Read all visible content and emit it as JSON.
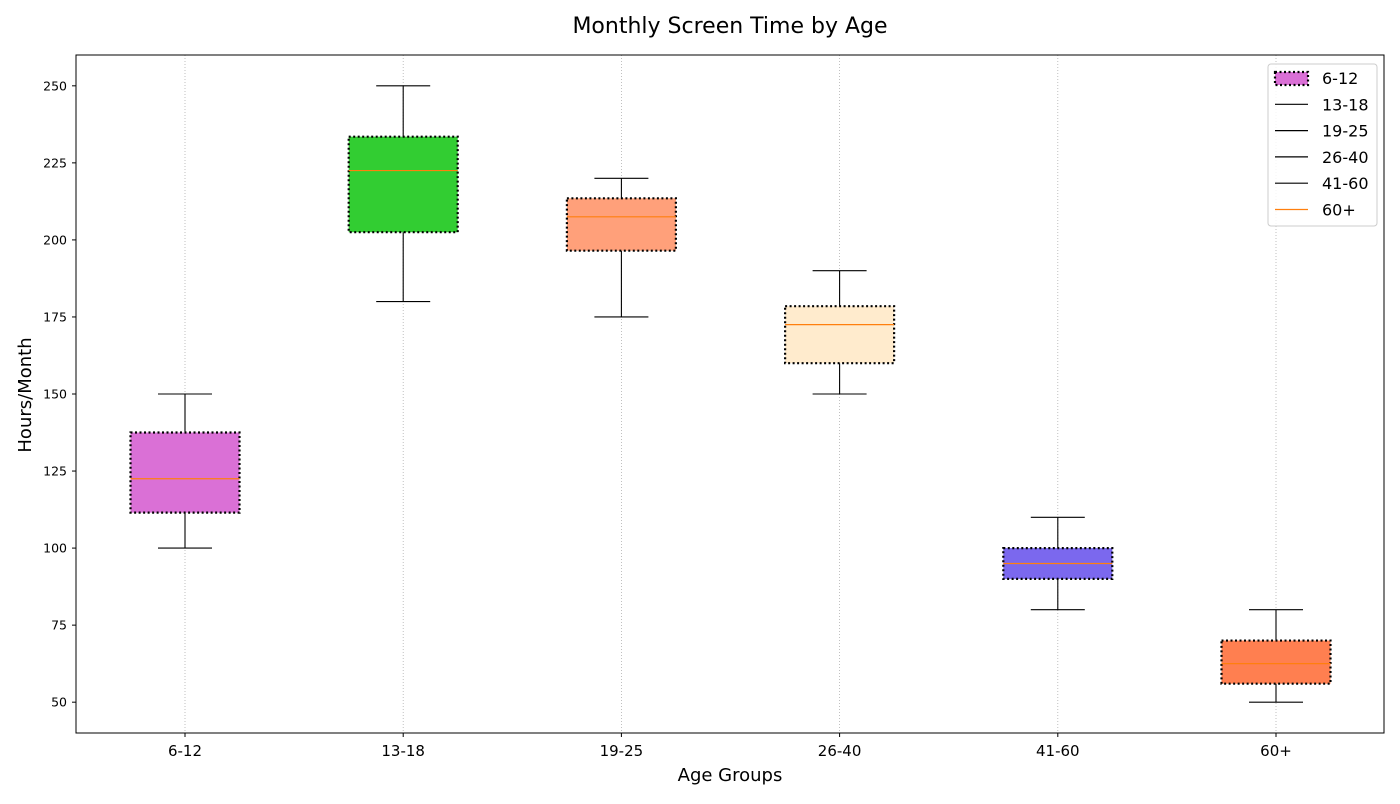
{
  "chart_data": {
    "type": "box",
    "title": "Monthly Screen Time by Age",
    "xlabel": "Age Groups",
    "ylabel": "Hours/Month",
    "ylim": [
      40,
      260
    ],
    "yticks": [
      50,
      75,
      100,
      125,
      150,
      175,
      200,
      225,
      250
    ],
    "grid": "x-axis dotted",
    "legend_position": "top-right",
    "legend_entries": [
      "6-12",
      "13-18",
      "19-25",
      "26-40",
      "41-60",
      "60+"
    ],
    "categories": [
      "6-12",
      "13-18",
      "19-25",
      "26-40",
      "41-60",
      "60+"
    ],
    "boxes": [
      {
        "label": "6-12",
        "min": 100,
        "q1": 111.5,
        "median": 122.5,
        "q3": 137.5,
        "max": 150,
        "color": "#DA70D6"
      },
      {
        "label": "13-18",
        "min": 180,
        "q1": 202.5,
        "median": 222.5,
        "q3": 233.5,
        "max": 250,
        "color": "#32CD32"
      },
      {
        "label": "19-25",
        "min": 175,
        "q1": 196.5,
        "median": 207.5,
        "q3": 213.5,
        "max": 220,
        "color": "#FFA07A"
      },
      {
        "label": "26-40",
        "min": 150,
        "q1": 160,
        "median": 172.5,
        "q3": 178.5,
        "max": 190,
        "color": "#FFEBCD"
      },
      {
        "label": "41-60",
        "min": 80,
        "q1": 90,
        "median": 95,
        "q3": 100,
        "max": 110,
        "color": "#7B68EE"
      },
      {
        "label": "60+",
        "min": 50,
        "q1": 56,
        "median": 62.5,
        "q3": 70,
        "max": 80,
        "color": "#FF7F50"
      }
    ],
    "median_color": "#FF7F0E",
    "whisker_color": "#000000"
  }
}
